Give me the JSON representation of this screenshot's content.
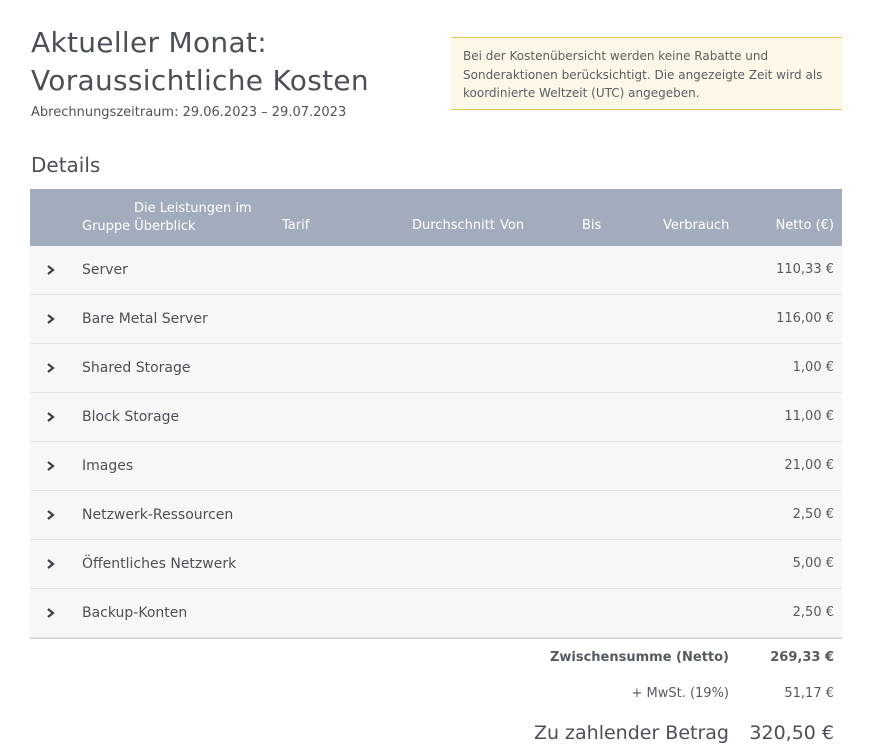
{
  "header": {
    "title_line1": "Aktueller Monat:",
    "title_line2": "Voraussichtliche Kosten",
    "billing_period": "Abrechnungszeitraum: 29.06.2023 – 29.07.2023"
  },
  "notice": {
    "text": "Bei der Kostenübersicht werden keine Rabatte und Sonderaktionen berücksichtigt. Die angezeigte Zeit wird als koordinierte Weltzeit (UTC) angegeben."
  },
  "details": {
    "title": "Details",
    "columns": {
      "group_line1": "Die Leistungen im",
      "group_line2": "Gruppe Überblick",
      "tarif": "Tarif",
      "average": "Durchschnitt",
      "from": "Von",
      "to": "Bis",
      "usage": "Verbrauch",
      "net": "Netto (€)"
    },
    "rows": [
      {
        "name": "Server",
        "net": "110,33 €"
      },
      {
        "name": "Bare Metal Server",
        "net": "116,00 €"
      },
      {
        "name": "Shared Storage",
        "net": "1,00 €"
      },
      {
        "name": "Block Storage",
        "net": "11,00 €"
      },
      {
        "name": "Images",
        "net": "21,00 €"
      },
      {
        "name": "Netzwerk-Ressourcen",
        "net": "2,50 €"
      },
      {
        "name": "Öffentliches Netzwerk",
        "net": "5,00 €"
      },
      {
        "name": "Backup-Konten",
        "net": "2,50 €"
      }
    ]
  },
  "summary": {
    "subtotal_label": "Zwischensumme (Netto)",
    "subtotal_value": "269,33 €",
    "vat_label": "+ MwSt. (19%)",
    "vat_value": "51,17 €",
    "total_label": "Zu zahlender Betrag",
    "total_value": "320,50 €"
  },
  "icons": {
    "row_toggle": "chevron-right-icon"
  }
}
